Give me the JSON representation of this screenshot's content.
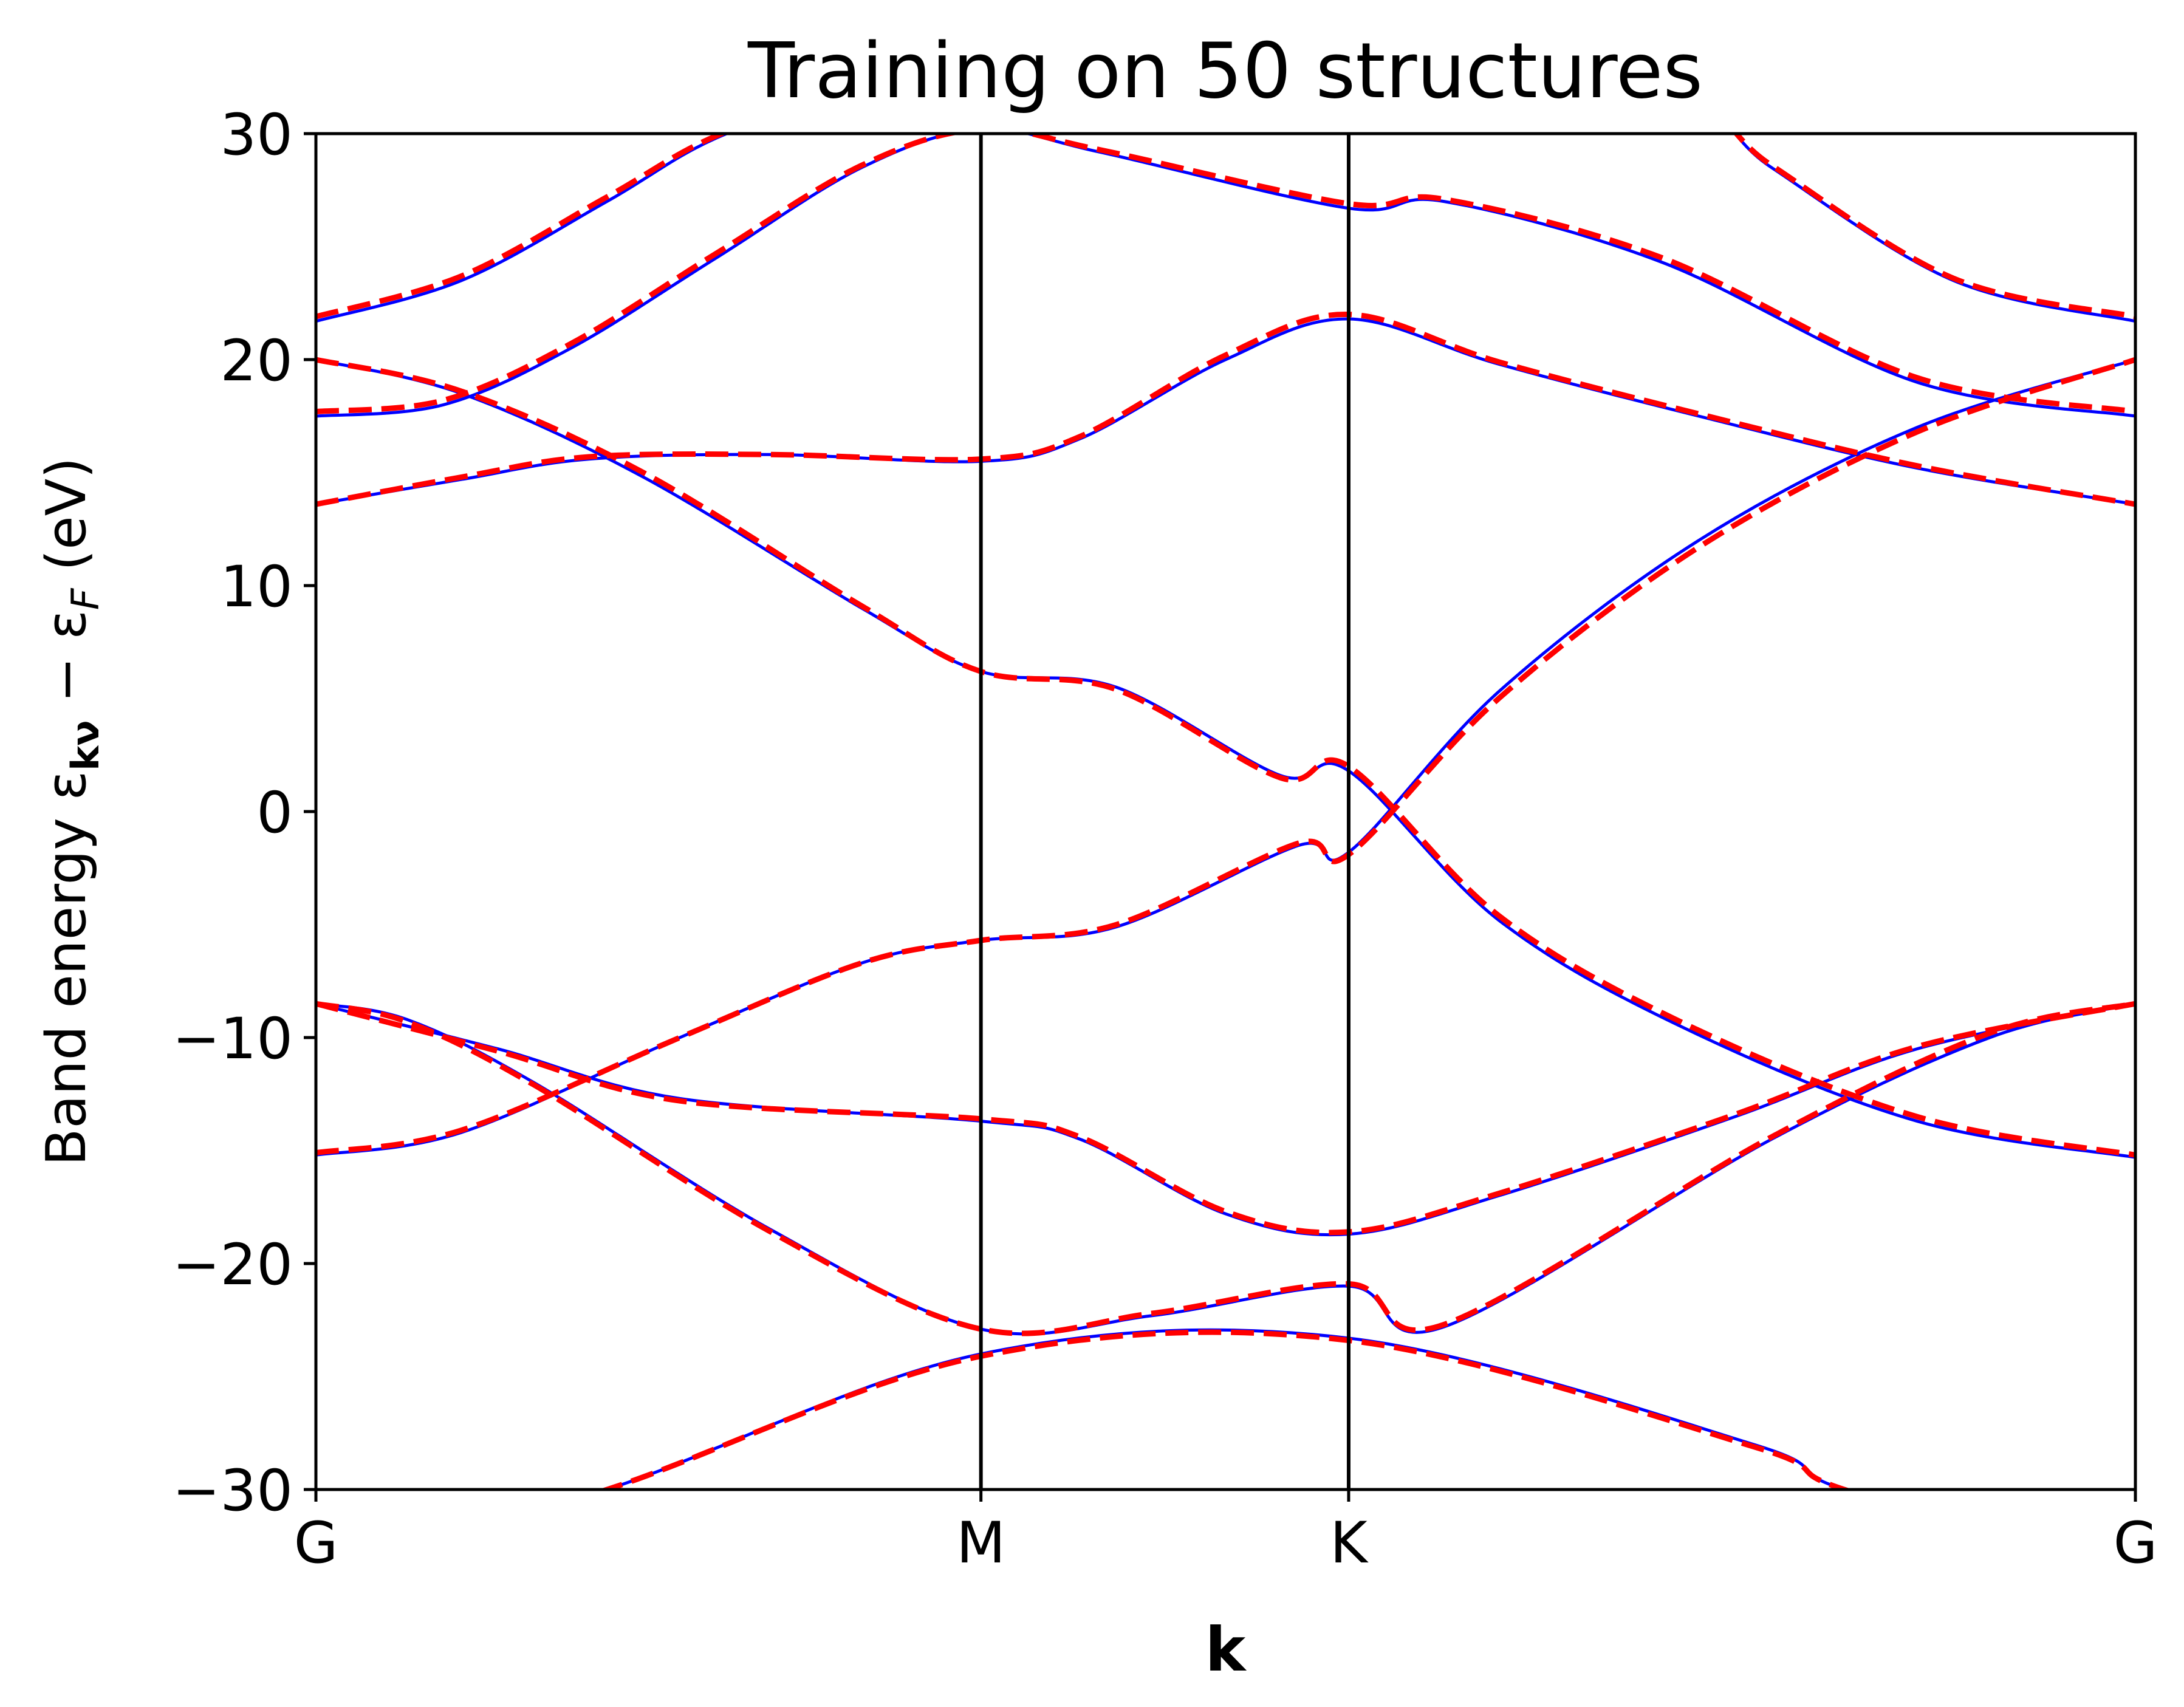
{
  "chart_data": {
    "type": "line",
    "title": "Training on 50 structures",
    "xlabel": "k",
    "ylabel": "Band energy ε",
    "ylabel_sub": "kν",
    "ylabel_minus": " − ε",
    "ylabel_sub2": "F",
    "ylabel_unit": " (eV)",
    "ylim": [
      -30,
      30
    ],
    "yticks": [
      -30,
      -20,
      -10,
      0,
      10,
      20,
      30
    ],
    "ytick_labels": [
      "−30",
      "−20",
      "−10",
      "0",
      "10",
      "20",
      "30"
    ],
    "kpoints": [
      {
        "label": "G",
        "x": 0.0
      },
      {
        "label": "M",
        "x": 0.3655
      },
      {
        "label": "K",
        "x": 0.5676
      },
      {
        "label": "G",
        "x": 1.0
      }
    ],
    "grid": false,
    "series": [
      {
        "style": "reference",
        "color": "#0000ff",
        "dash": "solid",
        "bands": [
          [
            [
              0,
              -33.5
            ],
            [
              0.16,
              -30
            ],
            [
              0.3655,
              -24.0
            ],
            [
              0.5676,
              -23.3
            ],
            [
              0.79,
              -28.0
            ],
            [
              0.84,
              -30
            ],
            [
              1.0,
              -33.5
            ]
          ],
          [
            [
              0,
              -8.5
            ],
            [
              0.05,
              -9.2
            ],
            [
              0.12,
              -12.0
            ],
            [
              0.25,
              -18.5
            ],
            [
              0.3655,
              -22.9
            ],
            [
              0.46,
              -22.3
            ],
            [
              0.5676,
              -21.0
            ],
            [
              0.62,
              -22.8
            ],
            [
              0.8,
              -14.5
            ],
            [
              0.92,
              -10.0
            ],
            [
              1.0,
              -8.5
            ]
          ],
          [
            [
              0,
              -15.2
            ],
            [
              0.08,
              -14.2
            ],
            [
              0.2,
              -10.0
            ],
            [
              0.3,
              -6.7
            ],
            [
              0.3655,
              -5.7
            ],
            [
              0.44,
              -5.1
            ],
            [
              0.54,
              -1.5
            ],
            [
              0.5676,
              -1.8
            ],
            [
              0.65,
              5.3
            ],
            [
              0.76,
              12.0
            ],
            [
              0.88,
              17.0
            ],
            [
              1.0,
              20.0
            ]
          ],
          [
            [
              0,
              -8.5
            ],
            [
              0.1,
              -10.5
            ],
            [
              0.2,
              -12.7
            ],
            [
              0.3655,
              -13.7
            ],
            [
              0.42,
              -14.5
            ],
            [
              0.5,
              -17.8
            ],
            [
              0.5676,
              -18.7
            ],
            [
              0.65,
              -17.0
            ],
            [
              0.78,
              -13.5
            ],
            [
              0.88,
              -10.5
            ],
            [
              1.0,
              -8.5
            ]
          ],
          [
            [
              0,
              20.0
            ],
            [
              0.08,
              18.5
            ],
            [
              0.18,
              14.8
            ],
            [
              0.3,
              9.0
            ],
            [
              0.3655,
              6.2
            ],
            [
              0.44,
              5.5
            ],
            [
              0.53,
              1.6
            ],
            [
              0.5676,
              1.8
            ],
            [
              0.65,
              -4.8
            ],
            [
              0.75,
              -9.5
            ],
            [
              0.88,
              -13.7
            ],
            [
              1.0,
              -15.3
            ]
          ],
          [
            [
              0,
              13.6
            ],
            [
              0.08,
              14.7
            ],
            [
              0.15,
              15.6
            ],
            [
              0.25,
              15.8
            ],
            [
              0.3655,
              15.5
            ],
            [
              0.42,
              16.5
            ],
            [
              0.5,
              20.0
            ],
            [
              0.5676,
              21.8
            ],
            [
              0.65,
              19.8
            ],
            [
              0.76,
              17.5
            ],
            [
              0.88,
              15.2
            ],
            [
              1.0,
              13.6
            ]
          ],
          [
            [
              0,
              17.5
            ],
            [
              0.07,
              18.0
            ],
            [
              0.14,
              20.5
            ],
            [
              0.22,
              24.5
            ],
            [
              0.3,
              28.5
            ],
            [
              0.3655,
              30.2
            ],
            [
              0.43,
              29.2
            ],
            [
              0.5676,
              26.7
            ],
            [
              0.62,
              27.0
            ],
            [
              0.74,
              24.3
            ],
            [
              0.88,
              19.0
            ],
            [
              1.0,
              17.5
            ]
          ],
          [
            [
              0,
              21.7
            ],
            [
              0.08,
              23.5
            ],
            [
              0.16,
              27.0
            ],
            [
              0.22,
              29.8
            ],
            [
              0.3,
              32.0
            ],
            [
              0.3655,
              33.0
            ],
            [
              0.5676,
              32.5
            ],
            [
              0.74,
              32.0
            ],
            [
              0.8,
              28.5
            ],
            [
              0.9,
              23.5
            ],
            [
              1.0,
              21.7
            ]
          ]
        ]
      },
      {
        "style": "prediction",
        "color": "#ff0000",
        "dash": "dashed",
        "bands": [
          [
            [
              0,
              -33.6
            ],
            [
              0.16,
              -30
            ],
            [
              0.3655,
              -24.1
            ],
            [
              0.5676,
              -23.4
            ],
            [
              0.79,
              -28.1
            ],
            [
              0.84,
              -30
            ],
            [
              1.0,
              -33.6
            ]
          ],
          [
            [
              0,
              -8.5
            ],
            [
              0.05,
              -9.3
            ],
            [
              0.12,
              -12.1
            ],
            [
              0.25,
              -18.6
            ],
            [
              0.3655,
              -22.9
            ],
            [
              0.46,
              -22.2
            ],
            [
              0.5676,
              -20.9
            ],
            [
              0.62,
              -22.7
            ],
            [
              0.8,
              -14.4
            ],
            [
              0.92,
              -9.8
            ],
            [
              1.0,
              -8.5
            ]
          ],
          [
            [
              0,
              -15.1
            ],
            [
              0.08,
              -14.1
            ],
            [
              0.2,
              -10.0
            ],
            [
              0.3,
              -6.7
            ],
            [
              0.3655,
              -5.7
            ],
            [
              0.44,
              -5.0
            ],
            [
              0.54,
              -1.4
            ],
            [
              0.5676,
              -1.9
            ],
            [
              0.65,
              5.0
            ],
            [
              0.76,
              11.7
            ],
            [
              0.88,
              16.8
            ],
            [
              1.0,
              20.0
            ]
          ],
          [
            [
              0,
              -8.5
            ],
            [
              0.1,
              -10.6
            ],
            [
              0.2,
              -12.8
            ],
            [
              0.3655,
              -13.6
            ],
            [
              0.42,
              -14.4
            ],
            [
              0.5,
              -17.7
            ],
            [
              0.5676,
              -18.6
            ],
            [
              0.65,
              -16.9
            ],
            [
              0.78,
              -13.4
            ],
            [
              0.88,
              -10.4
            ],
            [
              1.0,
              -8.5
            ]
          ],
          [
            [
              0,
              20.0
            ],
            [
              0.08,
              18.6
            ],
            [
              0.18,
              15.0
            ],
            [
              0.3,
              9.1
            ],
            [
              0.3655,
              6.2
            ],
            [
              0.44,
              5.4
            ],
            [
              0.53,
              1.5
            ],
            [
              0.5676,
              2.0
            ],
            [
              0.65,
              -4.6
            ],
            [
              0.75,
              -9.3
            ],
            [
              0.88,
              -13.5
            ],
            [
              1.0,
              -15.2
            ]
          ],
          [
            [
              0,
              13.6
            ],
            [
              0.08,
              14.8
            ],
            [
              0.15,
              15.7
            ],
            [
              0.25,
              15.8
            ],
            [
              0.3655,
              15.6
            ],
            [
              0.42,
              16.6
            ],
            [
              0.5,
              20.2
            ],
            [
              0.5676,
              22.0
            ],
            [
              0.65,
              19.9
            ],
            [
              0.76,
              17.6
            ],
            [
              0.88,
              15.3
            ],
            [
              1.0,
              13.6
            ]
          ],
          [
            [
              0,
              17.7
            ],
            [
              0.07,
              18.2
            ],
            [
              0.14,
              20.7
            ],
            [
              0.22,
              24.7
            ],
            [
              0.3,
              28.6
            ],
            [
              0.3655,
              30.2
            ],
            [
              0.43,
              29.3
            ],
            [
              0.5676,
              26.9
            ],
            [
              0.62,
              27.1
            ],
            [
              0.74,
              24.5
            ],
            [
              0.88,
              19.2
            ],
            [
              1.0,
              17.7
            ]
          ],
          [
            [
              0,
              21.9
            ],
            [
              0.08,
              23.7
            ],
            [
              0.16,
              27.2
            ],
            [
              0.22,
              29.9
            ],
            [
              0.3,
              32.0
            ],
            [
              0.3655,
              33.0
            ],
            [
              0.5676,
              32.5
            ],
            [
              0.74,
              32.0
            ],
            [
              0.8,
              28.6
            ],
            [
              0.9,
              23.6
            ],
            [
              1.0,
              21.9
            ]
          ]
        ]
      }
    ]
  }
}
